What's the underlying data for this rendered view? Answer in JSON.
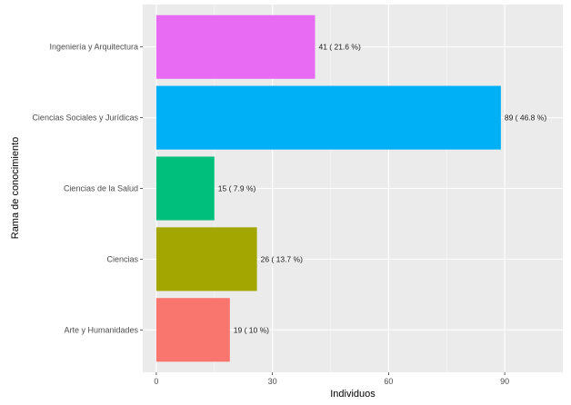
{
  "chart_data": {
    "type": "bar",
    "orientation": "horizontal",
    "xlabel": "Individuos",
    "ylabel": "Rama de conocimiento",
    "xlim": [
      -3.5,
      105
    ],
    "xticks": [
      0,
      30,
      60,
      90
    ],
    "grid": true,
    "categories": [
      "Ingeniería y Arquitectura",
      "Ciencias Sociales y Jurídicas",
      "Ciencias de la Salud",
      "Ciencias",
      "Arte y Humanidades"
    ],
    "values": [
      41,
      89,
      15,
      26,
      19
    ],
    "data_labels": [
      "41 ( 21.6 %)",
      "89 ( 46.8 %)",
      "15 ( 7.9 %)",
      "26 ( 13.7 %)",
      "19 ( 10 %)"
    ],
    "colors": [
      "#E76BF3",
      "#00B0F6",
      "#00BF7D",
      "#A3A500",
      "#F8766D"
    ]
  }
}
